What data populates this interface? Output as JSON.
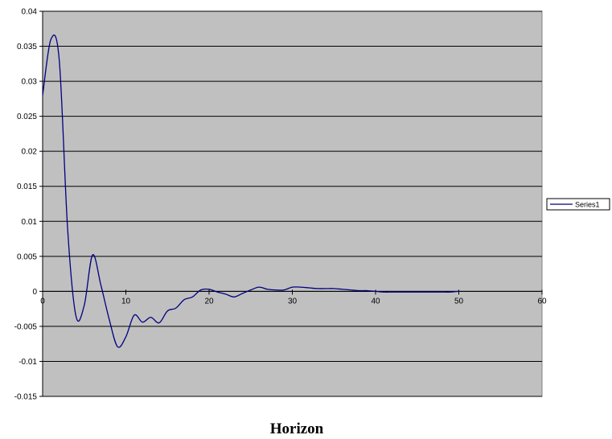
{
  "chart_data": {
    "type": "line",
    "title": "",
    "xlabel": "Horizon",
    "ylabel": "",
    "xlim": [
      0,
      60
    ],
    "ylim": [
      -0.015,
      0.04
    ],
    "x_ticks": [
      0,
      10,
      20,
      30,
      40,
      50,
      60
    ],
    "x_tick_labels": [
      "0",
      "10",
      "20",
      "30",
      "40",
      "50",
      "60"
    ],
    "y_ticks": [
      -0.015,
      -0.01,
      -0.005,
      0,
      0.005,
      0.01,
      0.015,
      0.02,
      0.025,
      0.03,
      0.035,
      0.04
    ],
    "y_tick_labels": [
      "-0.015",
      "-0.01",
      "-0.005",
      "0",
      "0.005",
      "0.01",
      "0.015",
      "0.02",
      "0.025",
      "0.03",
      "0.035",
      "0.04"
    ],
    "grid": "horizontal",
    "legend": "right",
    "colors": {
      "plot_area": "#c0c0c0",
      "series": "#000080",
      "grid": "#000000"
    },
    "series": [
      {
        "name": "Series1",
        "x": [
          0,
          1,
          2,
          3,
          4,
          5,
          6,
          7,
          8,
          9,
          10,
          11,
          12,
          13,
          14,
          15,
          16,
          17,
          18,
          19,
          20,
          21,
          22,
          23,
          24,
          25,
          26,
          27,
          28,
          29,
          30,
          31,
          32,
          33,
          34,
          35,
          36,
          37,
          38,
          39,
          40,
          41,
          42,
          43,
          44,
          45,
          46,
          47,
          48,
          49,
          50
        ],
        "values": [
          0.028,
          0.036,
          0.033,
          0.009,
          -0.0035,
          -0.002,
          0.0052,
          0.0009,
          -0.004,
          -0.0079,
          -0.0065,
          -0.0034,
          -0.0044,
          -0.0037,
          -0.0045,
          -0.0028,
          -0.0024,
          -0.0012,
          -0.0008,
          0.0002,
          0.0003,
          -0.0001,
          -0.0004,
          -0.0008,
          -0.0003,
          0.0002,
          0.0006,
          0.0003,
          0.0002,
          0.0002,
          0.0006,
          0.0006,
          0.0005,
          0.0004,
          0.0004,
          0.0004,
          0.0003,
          0.0002,
          0.0001,
          0.0001,
          0.0,
          -0.0001,
          -0.0001,
          -0.0001,
          -0.0001,
          -0.0001,
          -0.0001,
          -0.0001,
          -0.0001,
          -0.0001,
          0.0
        ]
      }
    ]
  }
}
